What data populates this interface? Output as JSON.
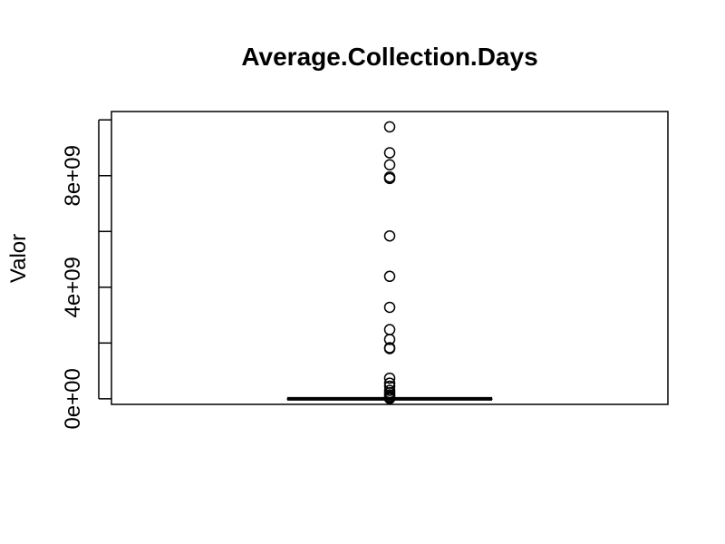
{
  "chart_data": {
    "type": "box",
    "title": "Average.Collection.Days",
    "xlabel": "",
    "ylabel": "Valor",
    "ylim": [
      -200000000,
      10300000000
    ],
    "yticks": [
      0,
      2000000000,
      4000000000,
      6000000000,
      8000000000,
      10000000000
    ],
    "ytick_labels": [
      "0e+00",
      "",
      "4e+09",
      "",
      "8e+09",
      ""
    ],
    "box": {
      "min": 0,
      "q1": 0,
      "median": 0,
      "q3": 0,
      "max": 0
    },
    "outliers": [
      9750000000,
      8820000000,
      8390000000,
      7950000000,
      7900000000,
      5840000000,
      4390000000,
      3280000000,
      2480000000,
      2130000000,
      1830000000,
      1800000000,
      740000000,
      560000000,
      450000000,
      300000000,
      220000000,
      140000000,
      80000000,
      40000000,
      10000000
    ],
    "grid": false,
    "legend": "none"
  }
}
